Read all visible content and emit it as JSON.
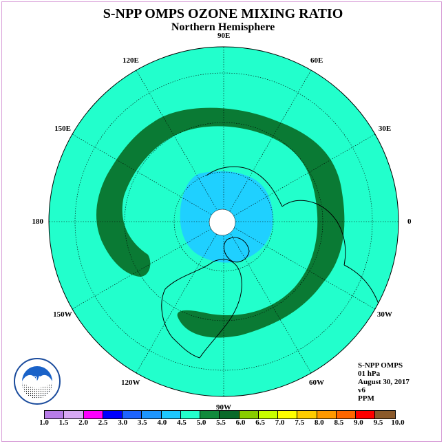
{
  "title": "S-NPP OMPS OZONE MIXING RATIO",
  "subtitle": "Northern Hemisphere",
  "longitude_labels": [
    {
      "text": "90E",
      "lon": 90
    },
    {
      "text": "60E",
      "lon": 60
    },
    {
      "text": "120E",
      "lon": 120
    },
    {
      "text": "150E",
      "lon": 150
    },
    {
      "text": "30E",
      "lon": 30
    },
    {
      "text": "180",
      "lon": 180
    },
    {
      "text": "0",
      "lon": 0
    },
    {
      "text": "150W",
      "lon": -150
    },
    {
      "text": "30W",
      "lon": -30
    },
    {
      "text": "120W",
      "lon": -120
    },
    {
      "text": "60W",
      "lon": -60
    },
    {
      "text": "90W",
      "lon": -90
    }
  ],
  "info": {
    "instrument": "S-NPP OMPS",
    "level": "01 hPa",
    "date": "August 30, 2017",
    "version": "v6",
    "units": "PPM"
  },
  "logo_text": "NOAA",
  "colors": {
    "ocean_fill": "#22ffcc",
    "band_fill": "#0a7a34",
    "polar_fill": "#1fd0ff",
    "no_data": "#ffffff"
  },
  "colorbar": {
    "ticks": [
      "1.0",
      "1.5",
      "2.0",
      "2.5",
      "3.0",
      "3.5",
      "4.0",
      "4.5",
      "5.0",
      "5.5",
      "6.0",
      "6.5",
      "7.0",
      "7.5",
      "8.0",
      "8.5",
      "9.0",
      "9.5",
      "10.0"
    ],
    "colors": [
      "#b87ce8",
      "#d8a8f4",
      "#ff00ff",
      "#0000ff",
      "#1e64ff",
      "#1e96ff",
      "#1ec8ff",
      "#22ffcc",
      "#118a3c",
      "#0a6a2a",
      "#88cc00",
      "#c8ff00",
      "#ffff00",
      "#ffcc00",
      "#ff9900",
      "#ff6600",
      "#ff0000",
      "#8b5a2b"
    ]
  }
}
